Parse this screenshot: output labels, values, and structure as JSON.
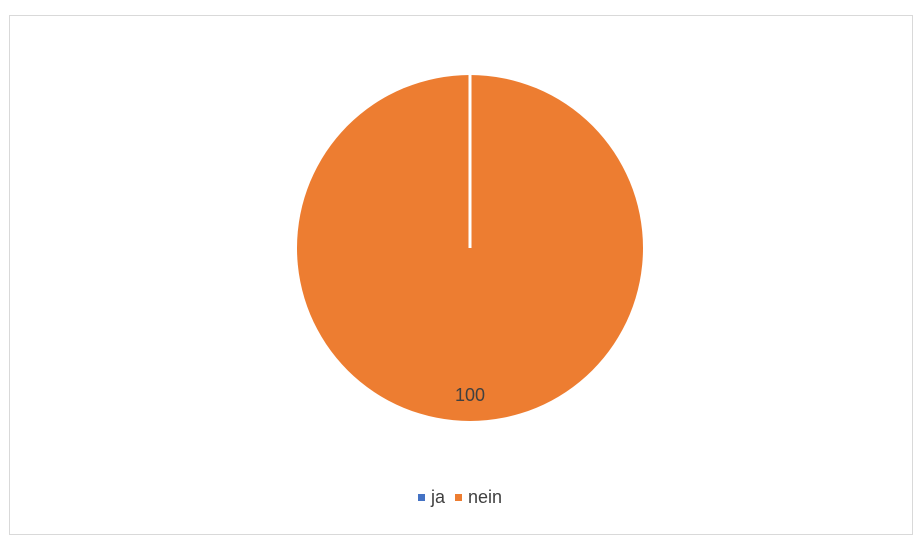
{
  "chart_data": {
    "type": "pie",
    "categories": [
      "ja",
      "nein"
    ],
    "values": [
      0,
      100
    ],
    "colors": [
      "#4472C4",
      "#ED7D31"
    ],
    "data_labels": [
      "",
      "100"
    ],
    "title": "",
    "legend": {
      "position": "bottom",
      "entries": [
        "ja",
        "nein"
      ]
    }
  }
}
